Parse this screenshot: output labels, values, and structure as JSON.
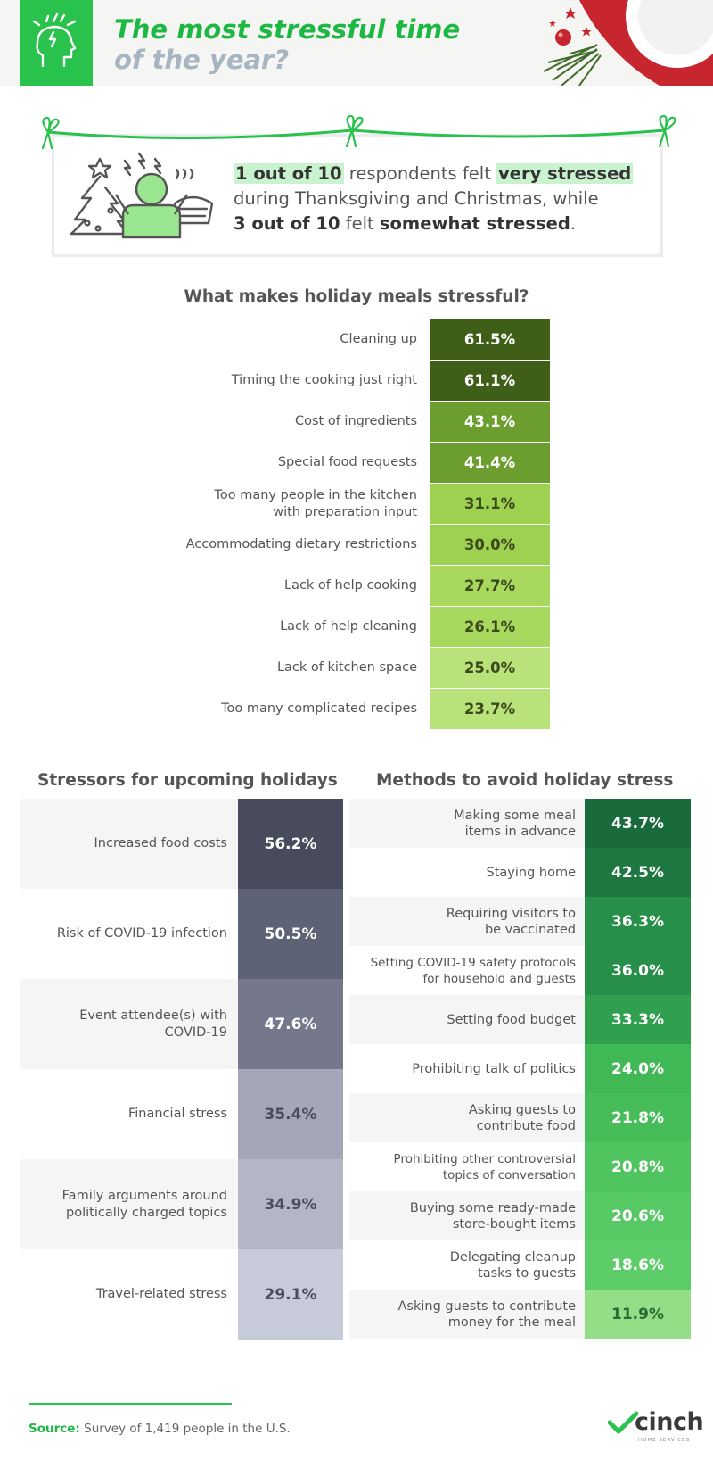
{
  "header": {
    "title_line1": "The most stressful time",
    "title_line2": "of the year?"
  },
  "callout": {
    "part1": "1 out of 10",
    "part2": " respondents felt ",
    "part3": "very stressed",
    "part4": "during Thanksgiving and Christmas, while",
    "part5": "3 out of 10",
    "part6": " felt ",
    "part7": "somewhat stressed",
    "part8": "."
  },
  "chart_data": [
    {
      "type": "bar",
      "title": "What makes holiday meals stressful?",
      "unit": "%",
      "categories": [
        "Cleaning up",
        "Timing the cooking just right",
        "Cost of ingredients",
        "Special food requests",
        "Too many people in the kitchen with preparation input",
        "Accommodating dietary restrictions",
        "Lack of help cooking",
        "Lack of help cleaning",
        "Lack of kitchen space",
        "Too many complicated recipes"
      ],
      "labels": [
        "Cleaning up",
        "Timing the cooking just right",
        "Cost of ingredients",
        "Special food requests",
        "Too many people in the kitchen\nwith preparation input",
        "Accommodating dietary restrictions",
        "Lack of help cooking",
        "Lack of help cleaning",
        "Lack of kitchen space",
        "Too many complicated recipes"
      ],
      "values": [
        61.5,
        61.1,
        43.1,
        41.4,
        31.1,
        30.0,
        27.7,
        26.1,
        25.0,
        23.7
      ],
      "value_labels": [
        "61.5%",
        "61.1%",
        "43.1%",
        "41.4%",
        "31.1%",
        "30.0%",
        "27.7%",
        "26.1%",
        "25.0%",
        "23.7%"
      ],
      "colors": [
        "#3f5e17",
        "#3f5e17",
        "#6b9e2f",
        "#6b9e2f",
        "#9fd150",
        "#9fd150",
        "#a9d85e",
        "#a9d85e",
        "#b9e27a",
        "#b9e27a"
      ],
      "text_colors": [
        "#ffffff",
        "#ffffff",
        "#ffffff",
        "#ffffff",
        "#3b4a1c",
        "#3b4a1c",
        "#3b4a1c",
        "#3b4a1c",
        "#3b4a1c",
        "#3b4a1c"
      ]
    },
    {
      "type": "table",
      "title": "Stressors for upcoming holidays",
      "unit": "%",
      "categories": [
        "Increased food costs",
        "Risk of COVID-19 infection",
        "Event attendee(s) with COVID-19",
        "Financial stress",
        "Family arguments around politically charged topics",
        "Travel-related stress"
      ],
      "labels": [
        "Increased food costs",
        "Risk of COVID-19 infection",
        "Event attendee(s) with\nCOVID-19",
        "Financial stress",
        "Family arguments around\npolitically charged topics",
        "Travel-related stress"
      ],
      "values": [
        56.2,
        50.5,
        47.6,
        35.4,
        34.9,
        29.1
      ],
      "value_labels": [
        "56.2%",
        "50.5%",
        "47.6%",
        "35.4%",
        "34.9%",
        "29.1%"
      ],
      "colors": [
        "#474b5c",
        "#5e6275",
        "#74788a",
        "#a4a7b8",
        "#b3b6c5",
        "#c7cad8"
      ],
      "text_colors": [
        "#ffffff",
        "#ffffff",
        "#ffffff",
        "#4a4d5c",
        "#4a4d5c",
        "#4a4d5c"
      ]
    },
    {
      "type": "table",
      "title": "Methods to avoid holiday stress",
      "unit": "%",
      "categories": [
        "Making some meal items in advance",
        "Staying home",
        "Requiring visitors to be vaccinated",
        "Setting COVID-19 safety protocols for household and guests",
        "Setting food budget",
        "Prohibiting talk of politics",
        "Asking guests to contribute food",
        "Prohibiting other controversial topics of conversation",
        "Buying some ready-made store-bought items",
        "Delegating cleanup tasks to guests",
        "Asking guests to contribute money for the meal"
      ],
      "labels": [
        "Making some meal\nitems in advance",
        "Staying home",
        "Requiring visitors to\nbe vaccinated",
        "Setting COVID-19 safety protocols\nfor household and guests",
        "Setting food budget",
        "Prohibiting talk of politics",
        "Asking guests to\ncontribute food",
        "Prohibiting other controversial\ntopics of conversation",
        "Buying some ready-made\nstore-bought items",
        "Delegating cleanup\ntasks to guests",
        "Asking guests to contribute\nmoney for the meal"
      ],
      "values": [
        43.7,
        42.5,
        36.3,
        36.0,
        33.3,
        24.0,
        21.8,
        20.8,
        20.6,
        18.6,
        11.9
      ],
      "value_labels": [
        "43.7%",
        "42.5%",
        "36.3%",
        "36.0%",
        "33.3%",
        "24.0%",
        "21.8%",
        "20.8%",
        "20.6%",
        "18.6%",
        "11.9%"
      ],
      "colors": [
        "#1a6b3c",
        "#1e7740",
        "#278f49",
        "#278f49",
        "#30a04f",
        "#41b856",
        "#46bd59",
        "#50c55f",
        "#56c964",
        "#5ccd68",
        "#93de87"
      ],
      "text_colors": [
        "#ffffff",
        "#ffffff",
        "#ffffff",
        "#ffffff",
        "#ffffff",
        "#ffffff",
        "#ffffff",
        "#ffffff",
        "#ffffff",
        "#ffffff",
        "#2e6a36"
      ]
    }
  ],
  "footer": {
    "source_label": "Source:",
    "source_text": " Survey of 1,419 people in the U.S.",
    "brand": "cinch",
    "brand_sub": "HOME SERVICES"
  },
  "colors": {
    "brand_green": "#28c24d",
    "title_green": "#1db843",
    "title_gray": "#a7b4c2",
    "highlight": "#c9f2cf"
  }
}
